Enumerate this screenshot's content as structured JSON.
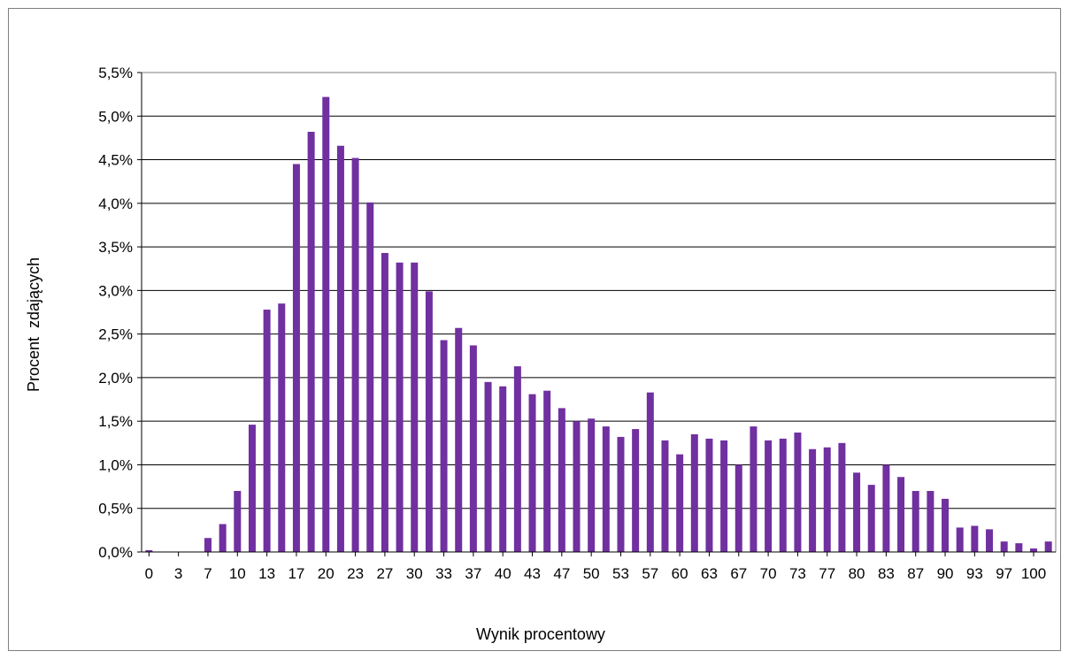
{
  "chart_data": {
    "type": "bar",
    "title": "",
    "xlabel": "Wynik procentowy",
    "ylabel": "Procent  zdających",
    "ylim": [
      0,
      5.5
    ],
    "y_ticks": [
      "0,0%",
      "0,5%",
      "1,0%",
      "1,5%",
      "2,0%",
      "2,5%",
      "3,0%",
      "3,5%",
      "4,0%",
      "4,5%",
      "5,0%",
      "5,5%"
    ],
    "x_tick_labels": [
      "0",
      "3",
      "7",
      "10",
      "13",
      "17",
      "20",
      "23",
      "27",
      "30",
      "33",
      "37",
      "40",
      "43",
      "47",
      "50",
      "53",
      "57",
      "60",
      "63",
      "67",
      "70",
      "73",
      "77",
      "80",
      "83",
      "87",
      "90",
      "93",
      "97",
      "100"
    ],
    "grid": true,
    "legend": "none",
    "bar_color": "#7030a0",
    "series": [
      {
        "values": [
          0.02,
          0.0,
          0.0,
          0.0,
          0.16,
          0.32,
          0.7,
          1.46,
          2.78,
          2.85,
          4.45,
          4.82,
          5.22,
          4.66,
          4.52,
          4.01,
          3.43,
          3.32,
          3.32,
          2.99,
          2.43,
          2.57,
          2.37,
          1.95,
          1.9,
          2.13,
          1.81,
          1.85,
          1.65,
          1.5,
          1.53,
          1.44,
          1.32,
          1.41,
          1.83,
          1.28,
          1.12,
          1.35,
          1.3,
          1.28,
          1.0,
          1.44,
          1.28,
          1.3,
          1.37,
          1.18,
          1.2,
          1.25,
          0.91,
          0.77,
          1.0,
          0.86,
          0.7,
          0.7,
          0.61,
          0.28,
          0.3,
          0.26,
          0.12,
          0.1,
          0.04,
          0.12
        ]
      }
    ]
  }
}
